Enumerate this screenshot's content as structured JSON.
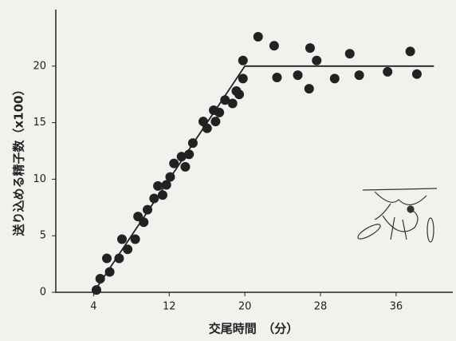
{
  "chart_data": {
    "type": "scatter",
    "y_label": "送り込める精子数（x100）",
    "x_label": "交尾時間　（分）",
    "xlim": [
      0,
      42
    ],
    "ylim": [
      0,
      25
    ],
    "xticks": [
      4,
      12,
      20,
      28,
      36
    ],
    "yticks": [
      0,
      5,
      10,
      15,
      20
    ],
    "color": "#222222",
    "points": {
      "x": [
        4.3,
        4.7,
        5.4,
        5.7,
        6.7,
        7.0,
        7.6,
        8.4,
        8.7,
        9.3,
        9.7,
        10.4,
        10.8,
        11.3,
        11.7,
        12.1,
        12.5,
        13.3,
        13.7,
        14.1,
        14.5,
        15.6,
        16.0,
        16.7,
        16.9,
        17.3,
        17.9,
        18.7,
        19.1,
        19.4,
        19.8,
        19.8,
        21.4,
        23.1,
        23.4,
        25.6,
        26.9,
        27.6,
        26.8,
        29.5,
        31.1,
        32.1,
        35.1,
        37.5,
        38.2
      ],
      "y": [
        0.2,
        1.2,
        3.0,
        1.8,
        3.0,
        4.7,
        3.8,
        4.7,
        6.7,
        6.2,
        7.3,
        8.3,
        9.4,
        8.6,
        9.5,
        10.2,
        11.4,
        12.0,
        11.1,
        12.2,
        13.2,
        15.1,
        14.5,
        16.1,
        15.1,
        15.9,
        17.0,
        16.7,
        17.8,
        17.5,
        18.9,
        20.5,
        22.6,
        21.8,
        19.0,
        19.2,
        21.6,
        20.5,
        18.0,
        18.9,
        21.1,
        19.2,
        19.5,
        21.3,
        19.3
      ]
    },
    "fit": {
      "x": [
        4,
        20,
        40
      ],
      "y": [
        0,
        20,
        20
      ]
    }
  }
}
